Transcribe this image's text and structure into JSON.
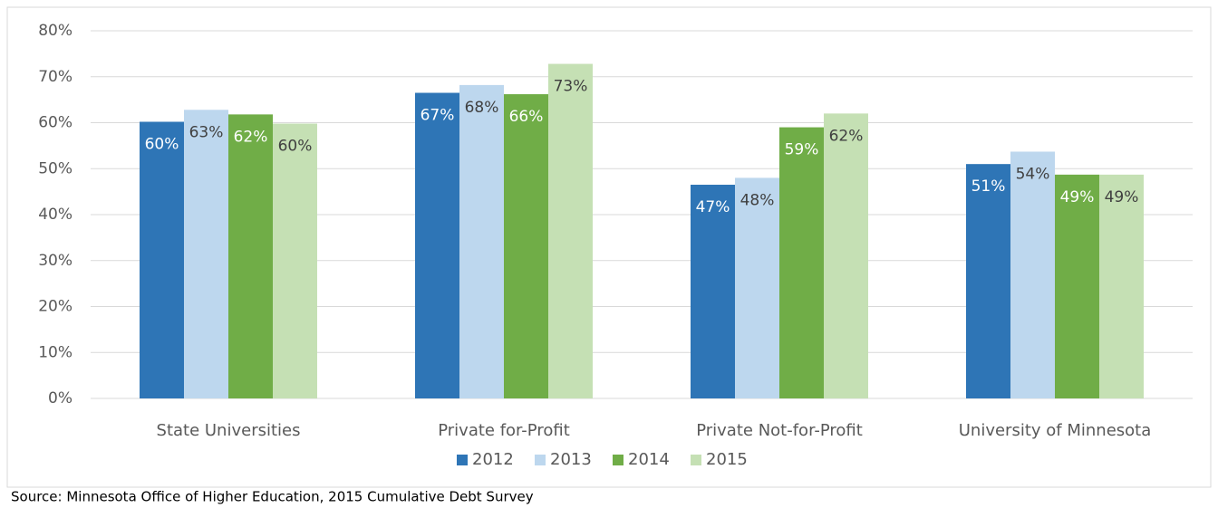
{
  "chart_data": {
    "type": "bar",
    "categories": [
      "State Universities",
      "Private for-Profit",
      "Private Not-for-Profit",
      "University of Minnesota"
    ],
    "series": [
      {
        "name": "2012",
        "color": "#2e75b6",
        "label_color": "#ffffff",
        "values": [
          60.2,
          66.5,
          46.5,
          51.0
        ],
        "value_labels": [
          "60%",
          "67%",
          "47%",
          "51%"
        ]
      },
      {
        "name": "2013",
        "color": "#bdd7ee",
        "label_color": "#404040",
        "values": [
          62.8,
          68.2,
          48.0,
          53.7
        ],
        "value_labels": [
          "63%",
          "68%",
          "48%",
          "54%"
        ]
      },
      {
        "name": "2014",
        "color": "#70ad47",
        "label_color": "#ffffff",
        "values": [
          61.8,
          66.2,
          59.0,
          48.7
        ],
        "value_labels": [
          "62%",
          "66%",
          "59%",
          "49%"
        ]
      },
      {
        "name": "2015",
        "color": "#c5e0b4",
        "label_color": "#404040",
        "values": [
          59.8,
          72.8,
          62.0,
          48.7
        ],
        "value_labels": [
          "60%",
          "73%",
          "62%",
          "49%"
        ]
      }
    ],
    "ylim": [
      0,
      80
    ],
    "yticks": [
      {
        "value": 0,
        "label": "0%"
      },
      {
        "value": 10,
        "label": "10%"
      },
      {
        "value": 20,
        "label": "20%"
      },
      {
        "value": 30,
        "label": "30%"
      },
      {
        "value": 40,
        "label": "40%"
      },
      {
        "value": 50,
        "label": "50%"
      },
      {
        "value": 60,
        "label": "60%"
      },
      {
        "value": 70,
        "label": "70%"
      },
      {
        "value": 80,
        "label": "80%"
      }
    ],
    "grid": true,
    "legend": "bottom",
    "source": "Source: Minnesota Office of Higher Education, 2015 Cumulative Debt Survey"
  }
}
